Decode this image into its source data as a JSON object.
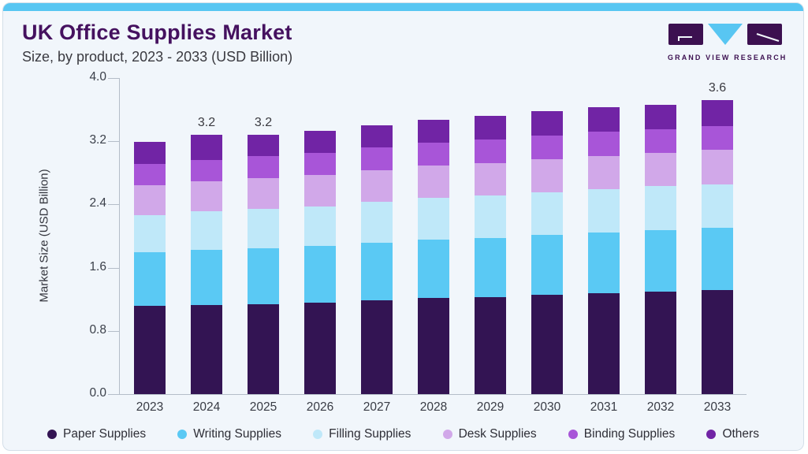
{
  "header": {
    "title": "UK Office Supplies Market",
    "subtitle": "Size, by product, 2023 - 2033 (USD Billion)"
  },
  "logo": {
    "text": "GRAND VIEW RESEARCH",
    "block_color": "#3c1050",
    "triangle_color": "#58c6f2"
  },
  "colors": {
    "card_background": "#f1f6fb",
    "top_strip": "#58c6f2",
    "title_text": "#45115f",
    "axis_line": "#b4bdc8"
  },
  "chart_data": {
    "type": "bar",
    "stacked": true,
    "title": "UK Office Supplies Market",
    "subtitle": "Size, by product, 2023 - 2033 (USD Billion)",
    "xlabel": "",
    "ylabel": "Market Size (USD Billion)",
    "ylim": [
      0.0,
      4.0
    ],
    "ytick_labels": [
      "0.0",
      "0.8",
      "1.6",
      "2.4",
      "3.2",
      "4.0"
    ],
    "grid": false,
    "legend_position": "bottom",
    "categories": [
      "2023",
      "2024",
      "2025",
      "2026",
      "2027",
      "2028",
      "2029",
      "2030",
      "2031",
      "2032",
      "2033"
    ],
    "series": [
      {
        "name": "Paper Supplies",
        "color": "#331453",
        "values": [
          1.09,
          1.1,
          1.11,
          1.13,
          1.16,
          1.18,
          1.19,
          1.22,
          1.24,
          1.26,
          1.28
        ]
      },
      {
        "name": "Writing Supplies",
        "color": "#5ac9f4",
        "values": [
          0.66,
          0.68,
          0.69,
          0.7,
          0.71,
          0.72,
          0.73,
          0.74,
          0.75,
          0.76,
          0.77
        ]
      },
      {
        "name": "Filling Supplies",
        "color": "#bfe8f9",
        "values": [
          0.46,
          0.48,
          0.49,
          0.49,
          0.5,
          0.51,
          0.52,
          0.52,
          0.53,
          0.54,
          0.53
        ]
      },
      {
        "name": "Desk Supplies",
        "color": "#d1a8e9",
        "values": [
          0.37,
          0.37,
          0.38,
          0.39,
          0.39,
          0.4,
          0.4,
          0.41,
          0.41,
          0.41,
          0.43
        ]
      },
      {
        "name": "Binding Supplies",
        "color": "#a855d8",
        "values": [
          0.26,
          0.26,
          0.27,
          0.27,
          0.28,
          0.28,
          0.29,
          0.29,
          0.3,
          0.29,
          0.29
        ]
      },
      {
        "name": "Others",
        "color": "#7124a5",
        "values": [
          0.27,
          0.31,
          0.26,
          0.27,
          0.27,
          0.28,
          0.29,
          0.3,
          0.3,
          0.3,
          0.32
        ]
      }
    ],
    "bar_total_labels": {
      "2024": "3.2",
      "2025": "3.2",
      "2033": "3.6"
    }
  }
}
